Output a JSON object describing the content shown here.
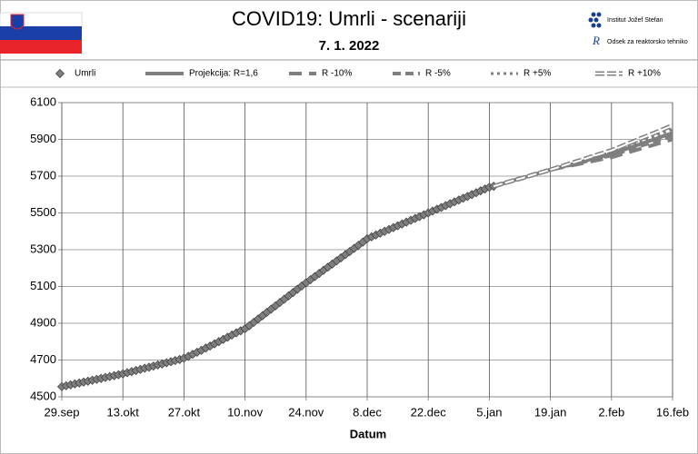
{
  "chart_data": {
    "type": "line",
    "title": "COVID19: Umrli - scenariji",
    "subtitle": "7. 1. 2022",
    "x_label": "Datum",
    "logos": [
      "Institut Jožef Stefan",
      "Odsek za reaktorsko tehniko"
    ],
    "grid": true,
    "ylim": [
      4500,
      6100
    ],
    "yticks": [
      4500,
      4700,
      4900,
      5100,
      5300,
      5500,
      5700,
      5900,
      6100
    ],
    "categories": [
      "29.sep",
      null,
      null,
      null,
      null,
      null,
      null,
      null,
      null,
      null,
      null,
      null,
      null,
      null,
      "13.okt",
      null,
      null,
      null,
      null,
      null,
      null,
      null,
      null,
      null,
      null,
      null,
      null,
      null,
      "27.okt",
      null,
      null,
      null,
      null,
      null,
      null,
      null,
      null,
      null,
      null,
      null,
      null,
      null,
      "10.nov",
      null,
      null,
      null,
      null,
      null,
      null,
      null,
      null,
      null,
      null,
      null,
      null,
      null,
      "24.nov",
      null,
      null,
      null,
      null,
      null,
      null,
      null,
      null,
      null,
      null,
      null,
      null,
      null,
      "8.dec",
      null,
      null,
      null,
      null,
      null,
      null,
      null,
      null,
      null,
      null,
      null,
      null,
      null,
      "22.dec",
      null,
      null,
      null,
      null,
      null,
      null,
      null,
      null,
      null,
      null,
      null,
      null,
      null,
      "5.jan",
      null,
      null,
      null,
      null,
      null,
      null,
      null,
      null,
      null,
      null,
      null,
      null,
      null,
      "19.jan",
      null,
      null,
      null,
      null,
      null,
      null,
      null,
      null,
      null,
      null,
      null,
      null,
      null,
      "2.feb",
      null,
      null,
      null,
      null,
      null,
      null,
      null,
      null,
      null,
      null,
      null,
      null,
      null,
      "16.feb"
    ],
    "series": [
      {
        "name": "Umrli",
        "color": "#7f7f7f",
        "style": "diamond",
        "values": [
          4555,
          4560,
          4565,
          4570,
          4575,
          4580,
          4585,
          4590,
          4595,
          4600,
          4605,
          4610,
          4615,
          4620,
          4625,
          4631,
          4637,
          4643,
          4649,
          4655,
          4661,
          4667,
          4673,
          4679,
          4685,
          4691,
          4697,
          4703,
          4710,
          4720,
          4731,
          4742,
          4753,
          4765,
          4776,
          4788,
          4800,
          4812,
          4824,
          4836,
          4848,
          4859,
          4870,
          4887,
          4905,
          4923,
          4941,
          4959,
          4977,
          4995,
          5013,
          5031,
          5049,
          5067,
          5085,
          5103,
          5120,
          5137,
          5154,
          5171,
          5188,
          5205,
          5222,
          5239,
          5256,
          5273,
          5290,
          5307,
          5324,
          5341,
          5360,
          5370,
          5380,
          5390,
          5400,
          5410,
          5420,
          5430,
          5440,
          5450,
          5460,
          5470,
          5480,
          5490,
          5500,
          5510,
          5520,
          5530,
          5540,
          5550,
          5560,
          5570,
          5580,
          5590,
          5600,
          5610,
          5620,
          5630,
          5640,
          5645,
          null,
          null,
          null,
          null,
          null,
          null,
          null,
          null,
          null,
          null,
          null,
          null,
          null,
          null,
          null,
          null,
          null,
          null,
          null,
          null,
          null,
          null,
          null,
          null,
          null,
          null,
          null,
          null,
          null,
          null,
          null,
          null,
          null,
          null,
          null,
          null,
          null,
          null,
          null,
          null,
          null
        ]
      },
      {
        "name": "Projekcija: R=1,6",
        "color": "#7f7f7f",
        "style": "solid",
        "values": [
          null,
          null,
          null,
          null,
          null,
          null,
          null,
          null,
          null,
          null,
          null,
          null,
          null,
          null,
          null,
          null,
          null,
          null,
          null,
          null,
          null,
          null,
          null,
          null,
          null,
          null,
          null,
          null,
          null,
          null,
          null,
          null,
          null,
          null,
          null,
          null,
          null,
          null,
          null,
          null,
          null,
          null,
          null,
          null,
          null,
          null,
          null,
          null,
          null,
          null,
          null,
          null,
          null,
          null,
          null,
          null,
          null,
          null,
          null,
          null,
          null,
          null,
          null,
          null,
          null,
          null,
          null,
          null,
          null,
          null,
          null,
          null,
          null,
          null,
          null,
          null,
          null,
          null,
          null,
          null,
          null,
          null,
          null,
          null,
          null,
          null,
          null,
          null,
          null,
          null,
          null,
          null,
          null,
          null,
          null,
          null,
          null,
          null,
          null,
          5645,
          5652,
          5659,
          5666,
          5673,
          5680,
          5686,
          5693,
          5700,
          5707,
          5714,
          5721,
          5728,
          5735,
          5741,
          5747,
          5753,
          5759,
          5765,
          5771,
          5777,
          5784,
          5790,
          5796,
          5802,
          5808,
          5814,
          5820,
          5828,
          5836,
          5845,
          5853,
          5861,
          5869,
          5878,
          5886,
          5894,
          5902,
          5910,
          5919,
          5927,
          5935
        ]
      },
      {
        "name": "R -10%",
        "color": "#7f7f7f",
        "style": "longdash",
        "values": [
          null,
          null,
          null,
          null,
          null,
          null,
          null,
          null,
          null,
          null,
          null,
          null,
          null,
          null,
          null,
          null,
          null,
          null,
          null,
          null,
          null,
          null,
          null,
          null,
          null,
          null,
          null,
          null,
          null,
          null,
          null,
          null,
          null,
          null,
          null,
          null,
          null,
          null,
          null,
          null,
          null,
          null,
          null,
          null,
          null,
          null,
          null,
          null,
          null,
          null,
          null,
          null,
          null,
          null,
          null,
          null,
          null,
          null,
          null,
          null,
          null,
          null,
          null,
          null,
          null,
          null,
          null,
          null,
          null,
          null,
          null,
          null,
          null,
          null,
          null,
          null,
          null,
          null,
          null,
          null,
          null,
          null,
          null,
          null,
          null,
          null,
          null,
          null,
          null,
          null,
          null,
          null,
          null,
          null,
          null,
          null,
          null,
          null,
          null,
          5645,
          5652,
          5659,
          5666,
          5673,
          5680,
          5686,
          5693,
          5700,
          5707,
          5714,
          5721,
          5728,
          5735,
          5740,
          5744,
          5749,
          5754,
          5759,
          5763,
          5768,
          5774,
          5779,
          5783,
          5788,
          5793,
          5798,
          5802,
          5809,
          5816,
          5824,
          5830,
          5837,
          5844,
          5852,
          5858,
          5865,
          5872,
          5879,
          5886,
          5893,
          5900
        ]
      },
      {
        "name": "R -5%",
        "color": "#7f7f7f",
        "style": "dash",
        "values": [
          null,
          null,
          null,
          null,
          null,
          null,
          null,
          null,
          null,
          null,
          null,
          null,
          null,
          null,
          null,
          null,
          null,
          null,
          null,
          null,
          null,
          null,
          null,
          null,
          null,
          null,
          null,
          null,
          null,
          null,
          null,
          null,
          null,
          null,
          null,
          null,
          null,
          null,
          null,
          null,
          null,
          null,
          null,
          null,
          null,
          null,
          null,
          null,
          null,
          null,
          null,
          null,
          null,
          null,
          null,
          null,
          null,
          null,
          null,
          null,
          null,
          null,
          null,
          null,
          null,
          null,
          null,
          null,
          null,
          null,
          null,
          null,
          null,
          null,
          null,
          null,
          null,
          null,
          null,
          null,
          null,
          null,
          null,
          null,
          null,
          null,
          null,
          null,
          null,
          null,
          null,
          null,
          null,
          null,
          null,
          null,
          null,
          null,
          null,
          5645,
          5652,
          5659,
          5666,
          5673,
          5680,
          5686,
          5693,
          5700,
          5707,
          5714,
          5721,
          5728,
          5735,
          5740,
          5746,
          5751,
          5757,
          5762,
          5768,
          5773,
          5780,
          5785,
          5791,
          5796,
          5802,
          5807,
          5812,
          5820,
          5827,
          5836,
          5843,
          5851,
          5858,
          5867,
          5874,
          5882,
          5889,
          5897,
          5905,
          5913,
          5920
        ]
      },
      {
        "name": "R +5%",
        "color": "#7f7f7f",
        "style": "dot",
        "values": [
          null,
          null,
          null,
          null,
          null,
          null,
          null,
          null,
          null,
          null,
          null,
          null,
          null,
          null,
          null,
          null,
          null,
          null,
          null,
          null,
          null,
          null,
          null,
          null,
          null,
          null,
          null,
          null,
          null,
          null,
          null,
          null,
          null,
          null,
          null,
          null,
          null,
          null,
          null,
          null,
          null,
          null,
          null,
          null,
          null,
          null,
          null,
          null,
          null,
          null,
          null,
          null,
          null,
          null,
          null,
          null,
          null,
          null,
          null,
          null,
          null,
          null,
          null,
          null,
          null,
          null,
          null,
          null,
          null,
          null,
          null,
          null,
          null,
          null,
          null,
          null,
          null,
          null,
          null,
          null,
          null,
          null,
          null,
          null,
          null,
          null,
          null,
          null,
          null,
          null,
          null,
          null,
          null,
          null,
          null,
          null,
          null,
          null,
          null,
          5645,
          5652,
          5659,
          5666,
          5673,
          5680,
          5686,
          5693,
          5700,
          5707,
          5714,
          5721,
          5728,
          5735,
          5742,
          5748,
          5755,
          5762,
          5769,
          5775,
          5782,
          5790,
          5796,
          5803,
          5810,
          5817,
          5823,
          5830,
          5839,
          5847,
          5857,
          5866,
          5875,
          5883,
          5893,
          5902,
          5910,
          5919,
          5928,
          5938,
          5946,
          5955
        ]
      },
      {
        "name": "R +10%",
        "color": "#7f7f7f",
        "style": "double",
        "values": [
          null,
          null,
          null,
          null,
          null,
          null,
          null,
          null,
          null,
          null,
          null,
          null,
          null,
          null,
          null,
          null,
          null,
          null,
          null,
          null,
          null,
          null,
          null,
          null,
          null,
          null,
          null,
          null,
          null,
          null,
          null,
          null,
          null,
          null,
          null,
          null,
          null,
          null,
          null,
          null,
          null,
          null,
          null,
          null,
          null,
          null,
          null,
          null,
          null,
          null,
          null,
          null,
          null,
          null,
          null,
          null,
          null,
          null,
          null,
          null,
          null,
          null,
          null,
          null,
          null,
          null,
          null,
          null,
          null,
          null,
          null,
          null,
          null,
          null,
          null,
          null,
          null,
          null,
          null,
          null,
          null,
          null,
          null,
          null,
          null,
          null,
          null,
          null,
          null,
          null,
          null,
          null,
          null,
          null,
          null,
          null,
          null,
          null,
          null,
          5645,
          5652,
          5659,
          5666,
          5673,
          5680,
          5686,
          5693,
          5700,
          5707,
          5714,
          5721,
          5728,
          5735,
          5742,
          5750,
          5757,
          5765,
          5772,
          5780,
          5787,
          5795,
          5803,
          5810,
          5818,
          5825,
          5833,
          5840,
          5849,
          5859,
          5869,
          5879,
          5888,
          5898,
          5908,
          5917,
          5927,
          5936,
          5946,
          5956,
          5966,
          5975
        ]
      }
    ]
  }
}
